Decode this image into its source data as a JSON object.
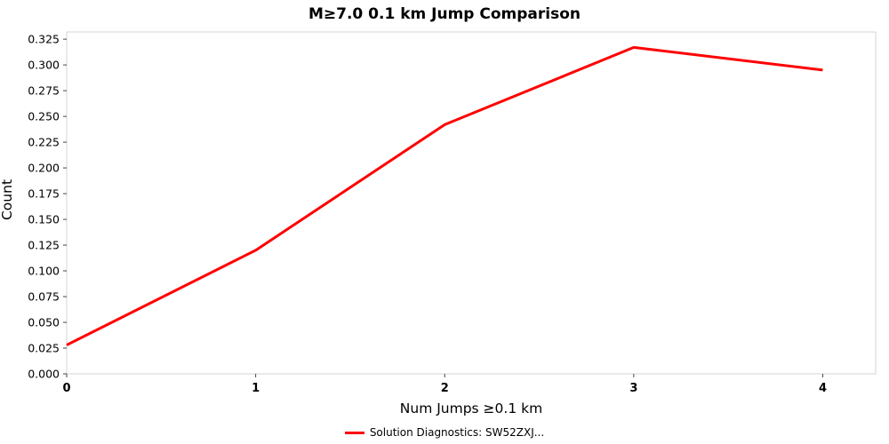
{
  "title": "M≥7.0 0.1 km Jump Comparison",
  "colors": {
    "line": "#ff0000",
    "plot_border": "#d4d4d4",
    "tick_mark": "#444444",
    "text": "#000000",
    "background": "#ffffff"
  },
  "legend": {
    "label": "Solution Diagnostics: SW52ZXJ..."
  },
  "chart_data": {
    "type": "line",
    "title": "M≥7.0 0.1 km Jump Comparison",
    "xlabel": "Num Jumps ≥0.1 km",
    "ylabel": "Count",
    "x": [
      0,
      1,
      2,
      3,
      4
    ],
    "series": [
      {
        "name": "Solution Diagnostics: SW52ZXJ...",
        "color": "#ff0000",
        "values": [
          0.028,
          0.12,
          0.242,
          0.317,
          0.295
        ]
      }
    ],
    "x_ticks": [
      0,
      1,
      2,
      3,
      4
    ],
    "y_ticks": [
      0.0,
      0.025,
      0.05,
      0.075,
      0.1,
      0.125,
      0.15,
      0.175,
      0.2,
      0.225,
      0.25,
      0.275,
      0.3,
      0.325
    ],
    "y_tick_decimals": 3,
    "xlim": [
      0,
      4.28
    ],
    "ylim": [
      0,
      0.332
    ],
    "grid": false,
    "legend_position": "bottom"
  }
}
